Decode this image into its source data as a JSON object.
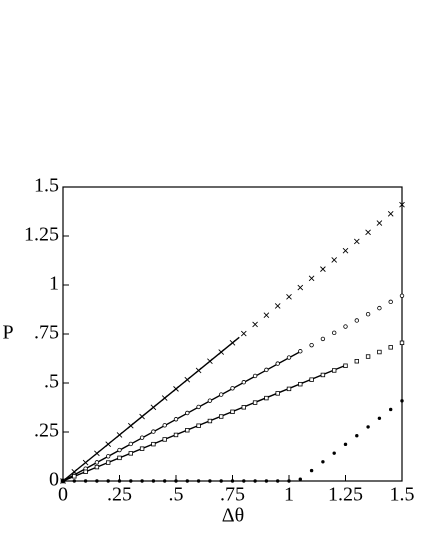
{
  "chart_data": {
    "type": "scatter",
    "x_label": "Δθ",
    "y_label": "P",
    "xlim": [
      0,
      1.5
    ],
    "ylim": [
      0,
      1.5
    ],
    "xticks": [
      0,
      {
        "value": 0.25,
        "label": ".25"
      },
      {
        "value": 0.5,
        "label": ".5"
      },
      {
        "value": 0.75,
        "label": ".75"
      },
      1,
      1.25,
      1.5
    ],
    "yticks": [
      0,
      {
        "value": 0.25,
        "label": ".25"
      },
      {
        "value": 0.5,
        "label": ".5"
      },
      {
        "value": 0.75,
        "label": ".75"
      },
      1,
      1.25,
      1.5
    ],
    "color": "#000000",
    "x": [
      0,
      0.05,
      0.1,
      0.15,
      0.2,
      0.25,
      0.3,
      0.35,
      0.4,
      0.45,
      0.5,
      0.55,
      0.6,
      0.65,
      0.7,
      0.75,
      0.8,
      0.85,
      0.9,
      0.95,
      1.0,
      1.05,
      1.1,
      1.15,
      1.2,
      1.25,
      1.3,
      1.35,
      1.4,
      1.45,
      1.5
    ],
    "series": [
      {
        "marker": "x",
        "values": [
          0,
          0.047,
          0.094,
          0.141,
          0.188,
          0.235,
          0.282,
          0.329,
          0.376,
          0.423,
          0.47,
          0.517,
          0.564,
          0.611,
          0.658,
          0.705,
          0.752,
          0.799,
          0.846,
          0.893,
          0.94,
          0.987,
          1.034,
          1.081,
          1.128,
          1.175,
          1.222,
          1.269,
          1.316,
          1.363,
          1.41
        ]
      },
      {
        "marker": "o",
        "values": [
          0,
          0.032,
          0.063,
          0.095,
          0.126,
          0.158,
          0.189,
          0.221,
          0.252,
          0.284,
          0.315,
          0.347,
          0.378,
          0.41,
          0.441,
          0.473,
          0.504,
          0.536,
          0.567,
          0.599,
          0.63,
          0.662,
          0.693,
          0.725,
          0.756,
          0.788,
          0.819,
          0.851,
          0.882,
          0.914,
          0.945
        ]
      },
      {
        "marker": "s",
        "values": [
          0,
          0.024,
          0.047,
          0.071,
          0.094,
          0.118,
          0.141,
          0.165,
          0.188,
          0.212,
          0.235,
          0.259,
          0.282,
          0.306,
          0.329,
          0.353,
          0.376,
          0.4,
          0.423,
          0.447,
          0.47,
          0.494,
          0.517,
          0.541,
          0.564,
          0.588,
          0.611,
          0.635,
          0.658,
          0.682,
          0.705
        ]
      },
      {
        "marker": "dot",
        "values": [
          0,
          0,
          0,
          0,
          0,
          0,
          0,
          0,
          0,
          0,
          0,
          0,
          0,
          0,
          0,
          0,
          0,
          0,
          0,
          0,
          0,
          0.009,
          0.053,
          0.098,
          0.142,
          0.187,
          0.231,
          0.276,
          0.32,
          0.365,
          0.409
        ]
      }
    ],
    "lines": [
      {
        "x": [
          0,
          0.78
        ],
        "y": [
          0,
          0.733
        ]
      },
      {
        "x": [
          0,
          1.05
        ],
        "y": [
          0,
          0.66
        ]
      },
      {
        "x": [
          0,
          1.25
        ],
        "y": [
          0,
          0.59
        ]
      }
    ]
  }
}
